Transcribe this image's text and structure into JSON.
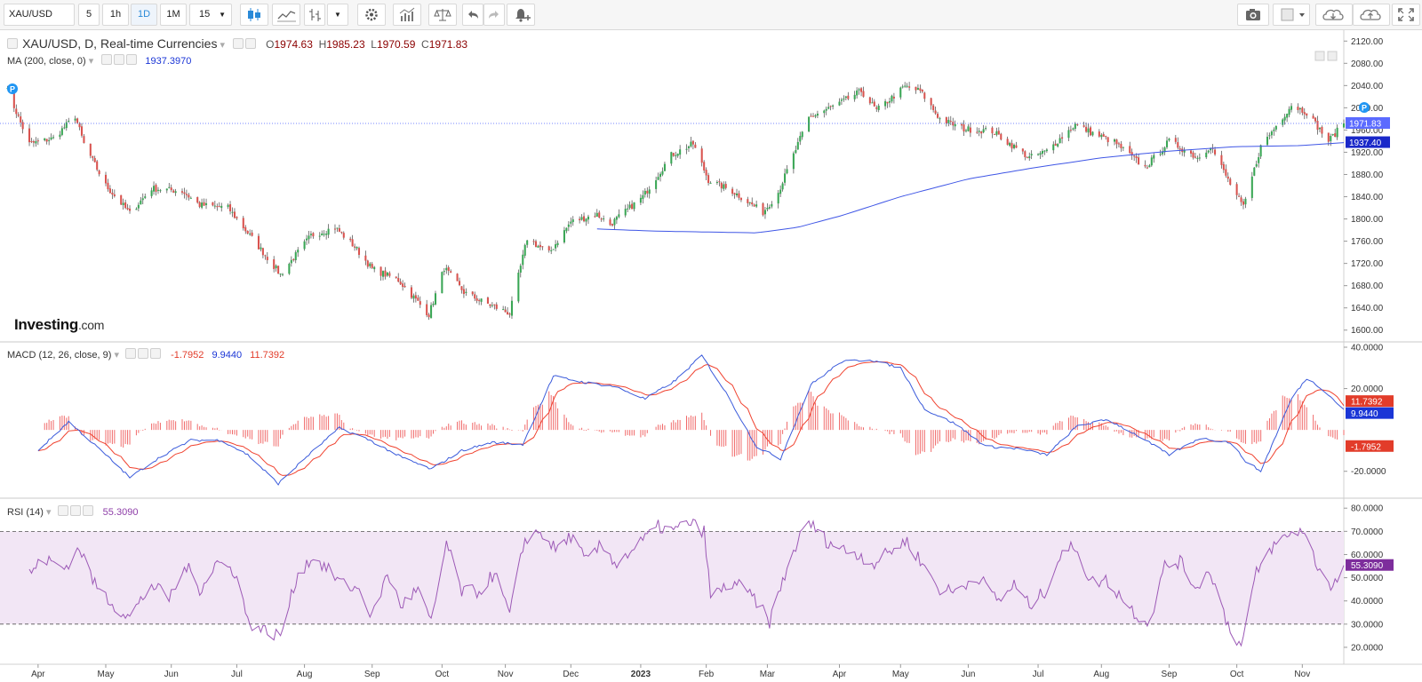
{
  "toolbar": {
    "symbol": "XAU/USD",
    "intervals": [
      "5",
      "1h",
      "1D",
      "1M"
    ],
    "active_interval": "1D",
    "minutes_select": "15",
    "icons": [
      "candlestick-icon",
      "line-chart-icon",
      "bar-style-icon",
      "dropdown-icon",
      "settings-gear-icon",
      "indicators-icon",
      "compare-balance-icon",
      "undo-icon",
      "redo-icon",
      "alert-bell-icon",
      "camera-icon",
      "color-box-icon",
      "cloud-download-icon",
      "cloud-upload-icon",
      "fullscreen-icon"
    ]
  },
  "legend": {
    "title": "XAU/USD, D, Real-time Currencies",
    "open_label": "O",
    "open": "1974.63",
    "high_label": "H",
    "high": "1985.23",
    "low_label": "L",
    "low": "1970.59",
    "close_label": "C",
    "close": "1971.83",
    "ma_label": "MA (200, close, 0)",
    "ma_value": "1937.3970",
    "macd_label": "MACD (12, 26, close, 9)",
    "macd_hist": "-1.7952",
    "macd_line": "9.9440",
    "macd_signal": "11.7392",
    "rsi_label": "RSI (14)",
    "rsi_value": "55.3090"
  },
  "logo": {
    "brand": "Investing",
    "suffix": ".com"
  },
  "colors": {
    "up": "#3aa655",
    "down": "#d9534f",
    "ma": "#3f56e6",
    "macd": "#3b5bdb",
    "signal": "#f0422f",
    "hist": "#f06a6a",
    "rsi": "#9c59b6",
    "rsi_band": "#f2e6f5"
  },
  "chart_data": {
    "type": "candlestick",
    "panes": [
      {
        "name": "price",
        "ylim": [
          1590,
          2130
        ],
        "y_ticks": [
          "2120.00",
          "2080.00",
          "2040.00",
          "2000.00",
          "1960.00",
          "1920.00",
          "1880.00",
          "1840.00",
          "1800.00",
          "1760.00",
          "1720.00",
          "1680.00",
          "1640.00",
          "1600.00"
        ],
        "last_price": "1971.83",
        "ma_last": "1937.40",
        "anchors": [
          [
            "2022-03-17",
            2040
          ],
          [
            "2022-03-28",
            1935
          ],
          [
            "2022-04-08",
            1945
          ],
          [
            "2022-04-18",
            1985
          ],
          [
            "2022-04-22",
            1935
          ],
          [
            "2022-05-02",
            1860
          ],
          [
            "2022-05-13",
            1810
          ],
          [
            "2022-05-23",
            1855
          ],
          [
            "2022-06-06",
            1850
          ],
          [
            "2022-06-14",
            1825
          ],
          [
            "2022-06-27",
            1820
          ],
          [
            "2022-07-05",
            1780
          ],
          [
            "2022-07-21",
            1700
          ],
          [
            "2022-08-04",
            1770
          ],
          [
            "2022-08-15",
            1785
          ],
          [
            "2022-08-24",
            1750
          ],
          [
            "2022-09-01",
            1710
          ],
          [
            "2022-09-13",
            1690
          ],
          [
            "2022-09-27",
            1628
          ],
          [
            "2022-10-04",
            1712
          ],
          [
            "2022-10-13",
            1668
          ],
          [
            "2022-10-21",
            1652
          ],
          [
            "2022-11-03",
            1630
          ],
          [
            "2022-11-11",
            1765
          ],
          [
            "2022-11-21",
            1738
          ],
          [
            "2022-12-01",
            1795
          ],
          [
            "2022-12-13",
            1808
          ],
          [
            "2022-12-19",
            1790
          ],
          [
            "2023-01-03",
            1840
          ],
          [
            "2023-01-16",
            1915
          ],
          [
            "2023-01-26",
            1935
          ],
          [
            "2023-02-02",
            1870
          ],
          [
            "2023-02-13",
            1850
          ],
          [
            "2023-02-27",
            1812
          ],
          [
            "2023-03-06",
            1848
          ],
          [
            "2023-03-20",
            1982
          ],
          [
            "2023-04-04",
            2010
          ],
          [
            "2023-04-13",
            2030
          ],
          [
            "2023-04-20",
            1995
          ],
          [
            "2023-05-03",
            2038
          ],
          [
            "2023-05-10",
            2030
          ],
          [
            "2023-05-19",
            1980
          ],
          [
            "2023-05-30",
            1962
          ],
          [
            "2023-06-12",
            1958
          ],
          [
            "2023-06-29",
            1910
          ],
          [
            "2023-07-07",
            1922
          ],
          [
            "2023-07-20",
            1970
          ],
          [
            "2023-07-27",
            1956
          ],
          [
            "2023-08-07",
            1938
          ],
          [
            "2023-08-21",
            1892
          ],
          [
            "2023-09-01",
            1940
          ],
          [
            "2023-09-14",
            1910
          ],
          [
            "2023-09-20",
            1932
          ],
          [
            "2023-09-28",
            1870
          ],
          [
            "2023-10-05",
            1820
          ],
          [
            "2023-10-13",
            1930
          ],
          [
            "2023-10-27",
            2005
          ],
          [
            "2023-11-03",
            1992
          ],
          [
            "2023-11-13",
            1940
          ],
          [
            "2023-11-20",
            1971.83
          ]
        ],
        "ma_anchors": [
          [
            "2022-12-13",
            1782
          ],
          [
            "2023-01-10",
            1778
          ],
          [
            "2023-02-24",
            1775
          ],
          [
            "2023-03-15",
            1785
          ],
          [
            "2023-04-04",
            1806
          ],
          [
            "2023-05-01",
            1840
          ],
          [
            "2023-06-01",
            1872
          ],
          [
            "2023-07-01",
            1892
          ],
          [
            "2023-08-01",
            1910
          ],
          [
            "2023-09-01",
            1922
          ],
          [
            "2023-10-01",
            1930
          ],
          [
            "2023-10-31",
            1932
          ],
          [
            "2023-11-20",
            1937.397
          ]
        ]
      },
      {
        "name": "macd",
        "ylim": [
          -30,
          40
        ],
        "y_ticks": [
          "40.0000",
          "20.0000",
          "-20.0000"
        ],
        "labels": {
          "line": "9.9440",
          "signal": "11.7392",
          "hist": "-1.7952"
        },
        "anchors": [
          [
            "2022-04-01",
            -10
          ],
          [
            "2022-04-15",
            4
          ],
          [
            "2022-05-02",
            -12
          ],
          [
            "2022-05-13",
            -23
          ],
          [
            "2022-05-27",
            -13
          ],
          [
            "2022-06-10",
            -5
          ],
          [
            "2022-06-24",
            -5
          ],
          [
            "2022-07-06",
            -12
          ],
          [
            "2022-07-20",
            -26
          ],
          [
            "2022-08-03",
            -12
          ],
          [
            "2022-08-17",
            1
          ],
          [
            "2022-08-31",
            -5
          ],
          [
            "2022-09-14",
            -13
          ],
          [
            "2022-09-28",
            -19
          ],
          [
            "2022-10-12",
            -10
          ],
          [
            "2022-10-26",
            -6
          ],
          [
            "2022-11-09",
            -7
          ],
          [
            "2022-11-23",
            26
          ],
          [
            "2022-12-07",
            23
          ],
          [
            "2022-12-21",
            21
          ],
          [
            "2023-01-04",
            15
          ],
          [
            "2023-01-18",
            24
          ],
          [
            "2023-01-30",
            36
          ],
          [
            "2023-02-10",
            18
          ],
          [
            "2023-02-24",
            -8
          ],
          [
            "2023-03-07",
            -14
          ],
          [
            "2023-03-21",
            22
          ],
          [
            "2023-04-04",
            33
          ],
          [
            "2023-04-17",
            34
          ],
          [
            "2023-05-01",
            30
          ],
          [
            "2023-05-12",
            10
          ],
          [
            "2023-05-26",
            3
          ],
          [
            "2023-06-09",
            -8
          ],
          [
            "2023-06-23",
            -9
          ],
          [
            "2023-07-07",
            -12
          ],
          [
            "2023-07-21",
            2
          ],
          [
            "2023-08-04",
            5
          ],
          [
            "2023-08-18",
            -3
          ],
          [
            "2023-09-01",
            -12
          ],
          [
            "2023-09-15",
            -4
          ],
          [
            "2023-09-29",
            -6
          ],
          [
            "2023-10-06",
            -15
          ],
          [
            "2023-10-13",
            -20
          ],
          [
            "2023-10-27",
            15
          ],
          [
            "2023-11-03",
            25
          ],
          [
            "2023-11-10",
            20
          ],
          [
            "2023-11-20",
            9.944
          ]
        ]
      },
      {
        "name": "rsi",
        "ylim": [
          15,
          82
        ],
        "y_ticks": [
          "80.0000",
          "70.0000",
          "60.0000",
          "50.0000",
          "40.0000",
          "30.0000",
          "20.0000"
        ],
        "band": [
          30,
          70
        ],
        "anchors": [
          [
            "2022-03-28",
            52
          ],
          [
            "2022-04-04",
            58
          ],
          [
            "2022-04-13",
            54
          ],
          [
            "2022-04-20",
            63
          ],
          [
            "2022-04-27",
            47
          ],
          [
            "2022-05-06",
            38
          ],
          [
            "2022-05-13",
            33
          ],
          [
            "2022-05-23",
            47
          ],
          [
            "2022-05-31",
            41
          ],
          [
            "2022-06-08",
            55
          ],
          [
            "2022-06-14",
            45
          ],
          [
            "2022-06-22",
            57
          ],
          [
            "2022-07-01",
            52
          ],
          [
            "2022-07-06",
            31
          ],
          [
            "2022-07-14",
            27
          ],
          [
            "2022-07-21",
            25
          ],
          [
            "2022-07-29",
            52
          ],
          [
            "2022-08-05",
            59
          ],
          [
            "2022-08-11",
            54
          ],
          [
            "2022-08-19",
            47
          ],
          [
            "2022-08-26",
            45
          ],
          [
            "2022-09-01",
            33
          ],
          [
            "2022-09-08",
            52
          ],
          [
            "2022-09-14",
            38
          ],
          [
            "2022-09-22",
            45
          ],
          [
            "2022-09-28",
            30
          ],
          [
            "2022-10-05",
            65
          ],
          [
            "2022-10-12",
            44
          ],
          [
            "2022-10-20",
            44
          ],
          [
            "2022-10-27",
            52
          ],
          [
            "2022-11-03",
            34
          ],
          [
            "2022-11-10",
            67
          ],
          [
            "2022-11-17",
            70
          ],
          [
            "2022-11-24",
            62
          ],
          [
            "2022-12-01",
            68
          ],
          [
            "2022-12-08",
            57
          ],
          [
            "2022-12-15",
            64
          ],
          [
            "2022-12-22",
            56
          ],
          [
            "2023-01-03",
            66
          ],
          [
            "2023-01-10",
            72
          ],
          [
            "2023-01-17",
            70
          ],
          [
            "2023-01-24",
            74
          ],
          [
            "2023-01-31",
            70
          ],
          [
            "2023-02-03",
            42
          ],
          [
            "2023-02-14",
            48
          ],
          [
            "2023-02-23",
            41
          ],
          [
            "2023-03-02",
            31
          ],
          [
            "2023-03-09",
            51
          ],
          [
            "2023-03-15",
            66
          ],
          [
            "2023-03-20",
            74
          ],
          [
            "2023-03-28",
            66
          ],
          [
            "2023-04-05",
            62
          ],
          [
            "2023-04-12",
            60
          ],
          [
            "2023-04-19",
            56
          ],
          [
            "2023-04-27",
            62
          ],
          [
            "2023-05-04",
            66
          ],
          [
            "2023-05-11",
            56
          ],
          [
            "2023-05-19",
            45
          ],
          [
            "2023-05-26",
            44
          ],
          [
            "2023-06-05",
            51
          ],
          [
            "2023-06-15",
            40
          ],
          [
            "2023-06-22",
            47
          ],
          [
            "2023-06-29",
            38
          ],
          [
            "2023-07-06",
            44
          ],
          [
            "2023-07-13",
            59
          ],
          [
            "2023-07-20",
            64
          ],
          [
            "2023-07-27",
            48
          ],
          [
            "2023-08-03",
            49
          ],
          [
            "2023-08-10",
            42
          ],
          [
            "2023-08-17",
            34
          ],
          [
            "2023-08-23",
            31
          ],
          [
            "2023-08-30",
            55
          ],
          [
            "2023-09-06",
            57
          ],
          [
            "2023-09-13",
            46
          ],
          [
            "2023-09-20",
            53
          ],
          [
            "2023-09-27",
            32
          ],
          [
            "2023-10-04",
            20
          ],
          [
            "2023-10-11",
            52
          ],
          [
            "2023-10-18",
            63
          ],
          [
            "2023-10-25",
            68
          ],
          [
            "2023-11-01",
            71
          ],
          [
            "2023-11-08",
            55
          ],
          [
            "2023-11-15",
            46
          ],
          [
            "2023-11-20",
            55.309
          ]
        ]
      }
    ],
    "x_ticks": [
      {
        "label": "Apr",
        "date": "2022-04-01"
      },
      {
        "label": "May",
        "date": "2022-05-02"
      },
      {
        "label": "Jun",
        "date": "2022-06-01"
      },
      {
        "label": "Jul",
        "date": "2022-07-01"
      },
      {
        "label": "Aug",
        "date": "2022-08-01"
      },
      {
        "label": "Sep",
        "date": "2022-09-01"
      },
      {
        "label": "Oct",
        "date": "2022-10-03"
      },
      {
        "label": "Nov",
        "date": "2022-11-01"
      },
      {
        "label": "Dec",
        "date": "2022-12-01"
      },
      {
        "label": "2023",
        "date": "2023-01-02"
      },
      {
        "label": "Feb",
        "date": "2023-02-01"
      },
      {
        "label": "Mar",
        "date": "2023-03-01"
      },
      {
        "label": "Apr",
        "date": "2023-04-03"
      },
      {
        "label": "May",
        "date": "2023-05-01"
      },
      {
        "label": "Jun",
        "date": "2023-06-01"
      },
      {
        "label": "Jul",
        "date": "2023-07-03"
      },
      {
        "label": "Aug",
        "date": "2023-08-01"
      },
      {
        "label": "Sep",
        "date": "2023-09-01"
      },
      {
        "label": "Oct",
        "date": "2023-10-02"
      },
      {
        "label": "Nov",
        "date": "2023-11-01"
      }
    ],
    "x_range": [
      "2022-03-17",
      "2023-11-20"
    ]
  }
}
